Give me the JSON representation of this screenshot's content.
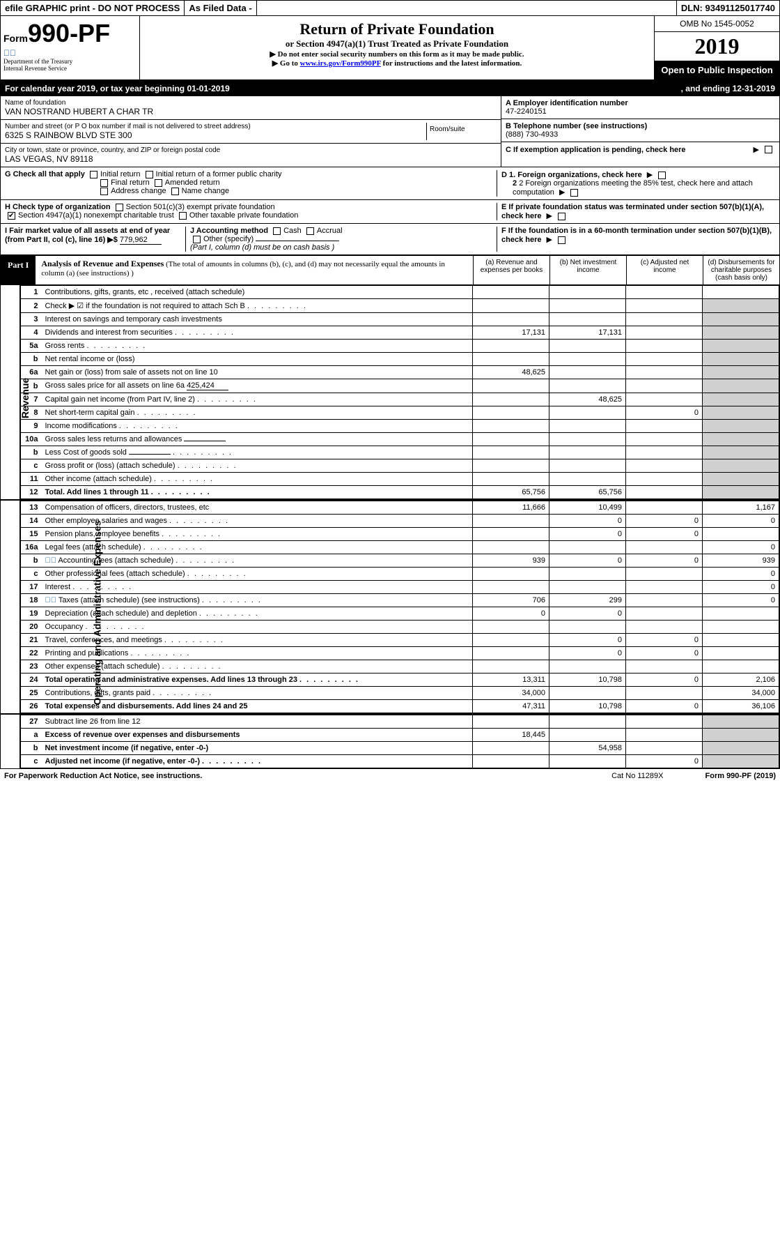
{
  "topbar": {
    "efile": "efile GRAPHIC print - DO NOT PROCESS",
    "asfiled": "As Filed Data -",
    "dln": "DLN: 93491125017740"
  },
  "header": {
    "form_prefix": "Form",
    "form_num": "990-PF",
    "dept": "Department of the Treasury",
    "irs": "Internal Revenue Service",
    "title": "Return of Private Foundation",
    "subtitle": "or Section 4947(a)(1) Trust Treated as Private Foundation",
    "note1": "▶ Do not enter social security numbers on this form as it may be made public.",
    "note2_pre": "▶ Go to ",
    "note2_link": "www.irs.gov/Form990PF",
    "note2_post": " for instructions and the latest information.",
    "omb": "OMB No 1545-0052",
    "year": "2019",
    "open": "Open to Public Inspection"
  },
  "calyear": {
    "left": "For calendar year 2019, or tax year beginning 01-01-2019",
    "right": ", and ending 12-31-2019"
  },
  "info": {
    "name_label": "Name of foundation",
    "name": "VAN NOSTRAND HUBERT A CHAR TR",
    "addr_label": "Number and street (or P O  box number if mail is not delivered to street address)",
    "addr": "6325 S RAINBOW BLVD STE 300",
    "room_label": "Room/suite",
    "city_label": "City or town, state or province, country, and ZIP or foreign postal code",
    "city": "LAS VEGAS, NV  89118",
    "ein_label": "A Employer identification number",
    "ein": "47-2240151",
    "tel_label": "B Telephone number (see instructions)",
    "tel": "(888) 730-4933",
    "c_label": "C If exemption application is pending, check here",
    "g_label": "G Check all that apply",
    "g_opts": [
      "Initial return",
      "Initial return of a former public charity",
      "Final return",
      "Amended return",
      "Address change",
      "Name change"
    ],
    "d1": "D 1. Foreign organizations, check here",
    "d2": "2 Foreign organizations meeting the 85% test, check here and attach computation",
    "e": "E  If private foundation status was terminated under section 507(b)(1)(A), check here",
    "h_label": "H Check type of organization",
    "h_501c3": "Section 501(c)(3) exempt private foundation",
    "h_4947": "Section 4947(a)(1) nonexempt charitable trust",
    "h_other": "Other taxable private foundation",
    "i_label": "I Fair market value of all assets at end of year (from Part II, col  (c), line 16) ▶$",
    "i_value": "779,962",
    "j_label": "J Accounting method",
    "j_cash": "Cash",
    "j_accrual": "Accrual",
    "j_other": "Other (specify)",
    "j_note": "(Part I, column (d) must be on cash basis )",
    "f": "F  If the foundation is in a 60-month termination under section 507(b)(1)(B), check here"
  },
  "part1": {
    "label": "Part I",
    "title": "Analysis of Revenue and Expenses",
    "desc": " (The total of amounts in columns (b), (c), and (d) may not necessarily equal the amounts in column (a) (see instructions) )",
    "col_a": "(a)   Revenue and expenses per books",
    "col_b": "(b)  Net investment income",
    "col_c": "(c)  Adjusted net income",
    "col_d": "(d)  Disbursements for charitable purposes (cash basis only)"
  },
  "revenue_label": "Revenue",
  "expense_label": "Operating and Administrative Expenses",
  "rows": [
    {
      "n": "1",
      "d": "Contributions, gifts, grants, etc , received (attach schedule)",
      "a": "",
      "b": "",
      "c": "",
      "dcol": ""
    },
    {
      "n": "2",
      "d": "Check ▶ ☑ if the foundation is not required to attach Sch B",
      "dots": true
    },
    {
      "n": "3",
      "d": "Interest on savings and temporary cash investments"
    },
    {
      "n": "4",
      "d": "Dividends and interest from securities",
      "dots": true,
      "a": "17,131",
      "b": "17,131"
    },
    {
      "n": "5a",
      "d": "Gross rents",
      "dots": true
    },
    {
      "n": "b",
      "d": "Net rental income or (loss)",
      "underline": true
    },
    {
      "n": "6a",
      "d": "Net gain or (loss) from sale of assets not on line 10",
      "a": "48,625"
    },
    {
      "n": "b",
      "d": "Gross sales price for all assets on line 6a",
      "inline": "425,424"
    },
    {
      "n": "7",
      "d": "Capital gain net income (from Part IV, line 2)",
      "dots": true,
      "b": "48,625"
    },
    {
      "n": "8",
      "d": "Net short-term capital gain",
      "dots": true,
      "c": "0"
    },
    {
      "n": "9",
      "d": "Income modifications",
      "dots": true
    },
    {
      "n": "10a",
      "d": "Gross sales less returns and allowances",
      "inline": ""
    },
    {
      "n": "b",
      "d": "Less  Cost of goods sold",
      "dots": true,
      "inline": ""
    },
    {
      "n": "c",
      "d": "Gross profit or (loss) (attach schedule)",
      "dots": true
    },
    {
      "n": "11",
      "d": "Other income (attach schedule)",
      "dots": true
    },
    {
      "n": "12",
      "d": "Total. Add lines 1 through 11",
      "dots": true,
      "bold": true,
      "a": "65,756",
      "b": "65,756"
    }
  ],
  "exp_rows": [
    {
      "n": "13",
      "d": "Compensation of officers, directors, trustees, etc",
      "a": "11,666",
      "b": "10,499",
      "c": "",
      "dcol": "1,167"
    },
    {
      "n": "14",
      "d": "Other employee salaries and wages",
      "dots": true,
      "b": "0",
      "c": "0",
      "dcol": "0"
    },
    {
      "n": "15",
      "d": "Pension plans, employee benefits",
      "dots": true,
      "b": "0",
      "c": "0"
    },
    {
      "n": "16a",
      "d": "Legal fees (attach schedule)",
      "dots": true,
      "dcol": "0"
    },
    {
      "n": "b",
      "d": "Accounting fees (attach schedule)",
      "dots": true,
      "stamp": true,
      "a": "939",
      "b": "0",
      "c": "0",
      "dcol": "939"
    },
    {
      "n": "c",
      "d": "Other professional fees (attach schedule)",
      "dots": true,
      "dcol": "0"
    },
    {
      "n": "17",
      "d": "Interest",
      "dots": true,
      "dcol": "0"
    },
    {
      "n": "18",
      "d": "Taxes (attach schedule) (see instructions)",
      "dots": true,
      "stamp": true,
      "a": "706",
      "b": "299",
      "dcol": "0"
    },
    {
      "n": "19",
      "d": "Depreciation (attach schedule) and depletion",
      "dots": true,
      "a": "0",
      "b": "0"
    },
    {
      "n": "20",
      "d": "Occupancy",
      "dots": true
    },
    {
      "n": "21",
      "d": "Travel, conferences, and meetings",
      "dots": true,
      "b": "0",
      "c": "0"
    },
    {
      "n": "22",
      "d": "Printing and publications",
      "dots": true,
      "b": "0",
      "c": "0"
    },
    {
      "n": "23",
      "d": "Other expenses (attach schedule)",
      "dots": true
    },
    {
      "n": "24",
      "d": "Total operating and administrative expenses. Add lines 13 through 23",
      "dots": true,
      "bold": true,
      "a": "13,311",
      "b": "10,798",
      "c": "0",
      "dcol": "2,106"
    },
    {
      "n": "25",
      "d": "Contributions, gifts, grants paid",
      "dots": true,
      "a": "34,000",
      "dcol": "34,000"
    },
    {
      "n": "26",
      "d": "Total expenses and disbursements. Add lines 24 and 25",
      "bold": true,
      "a": "47,311",
      "b": "10,798",
      "c": "0",
      "dcol": "36,106"
    }
  ],
  "net_rows": [
    {
      "n": "27",
      "d": "Subtract line 26 from line 12"
    },
    {
      "n": "a",
      "d": "Excess of revenue over expenses and disbursements",
      "bold": true,
      "a": "18,445"
    },
    {
      "n": "b",
      "d": "Net investment income (if negative, enter -0-)",
      "bold": true,
      "b": "54,958"
    },
    {
      "n": "c",
      "d": "Adjusted net income (if negative, enter -0-)",
      "bold": true,
      "dots": true,
      "c": "0"
    }
  ],
  "footer": {
    "left": "For Paperwork Reduction Act Notice, see instructions.",
    "mid": "Cat  No  11289X",
    "right": "Form 990-PF (2019)"
  }
}
